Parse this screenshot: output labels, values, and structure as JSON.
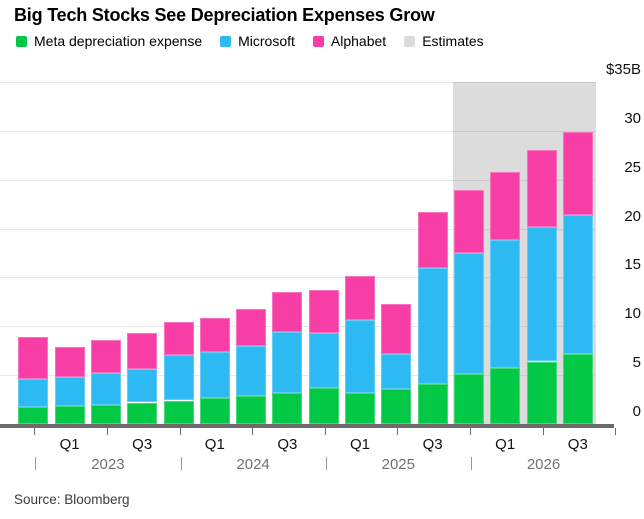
{
  "title": "Big Tech Stocks See Depreciation Expenses Grow",
  "source": "Source: Bloomberg",
  "legend": [
    {
      "label": "Meta depreciation expense",
      "color": "#02C846"
    },
    {
      "label": "Microsoft",
      "color": "#2DB9F2"
    },
    {
      "label": "Alphabet",
      "color": "#F63EA6"
    },
    {
      "label": "Estimates",
      "color": "#DCDCDC"
    }
  ],
  "colors": {
    "meta_green": "#02C846",
    "microsoft_blue": "#2DB9F2",
    "alphabet_pink": "#F63EA6",
    "estimates_gray": "#DCDCDC",
    "axis": "#6B6B6B",
    "year_text": "#717171"
  },
  "chart_data": {
    "type": "bar",
    "stacked": true,
    "title": "Big Tech Stocks See Depreciation Expenses Grow",
    "unit": "USD billions",
    "categories": [
      "Q4 2022",
      "Q1 2023",
      "Q2 2023",
      "Q3 2023",
      "Q4 2023",
      "Q1 2024",
      "Q2 2024",
      "Q3 2024",
      "Q4 2024",
      "Q1 2025",
      "Q2 2025",
      "Q3 2025",
      "Q4 2025",
      "Q1 2026",
      "Q2 2026",
      "Q3 2026"
    ],
    "x_tick_labels": [
      "",
      "Q1",
      "",
      "Q3",
      "",
      "Q1",
      "",
      "Q3",
      "",
      "Q1",
      "",
      "Q3",
      "",
      "Q1",
      "",
      "Q3"
    ],
    "years": [
      "2023",
      "2024",
      "2025",
      "2026"
    ],
    "series": [
      {
        "name": "Meta depreciation expense",
        "color": "#02C846",
        "values": [
          1.7,
          1.8,
          1.9,
          2.2,
          2.4,
          2.7,
          2.9,
          3.2,
          3.7,
          3.2,
          3.6,
          4.1,
          5.1,
          5.7,
          6.4,
          7.2
        ]
      },
      {
        "name": "Microsoft",
        "color": "#2DB9F2",
        "values": [
          2.9,
          3.0,
          3.3,
          3.4,
          4.7,
          4.7,
          5.1,
          6.2,
          5.6,
          7.4,
          3.6,
          11.9,
          12.4,
          13.1,
          13.8,
          14.2
        ]
      },
      {
        "name": "Alphabet",
        "color": "#F63EA6",
        "values": [
          4.3,
          3.1,
          3.4,
          3.7,
          3.3,
          3.5,
          3.8,
          4.1,
          4.4,
          4.6,
          5.1,
          5.7,
          6.5,
          7.0,
          7.8,
          8.5
        ]
      }
    ],
    "estimates_start_index": 12,
    "estimates_label": "Estimates",
    "y_axis": {
      "max": 35,
      "max_label": "$35B",
      "tick_values": [
        30,
        25,
        20,
        15,
        10,
        5,
        0
      ],
      "grid_values": [
        35,
        30,
        25,
        20,
        15,
        10,
        5
      ]
    },
    "legend_position": "top",
    "grid": true
  }
}
